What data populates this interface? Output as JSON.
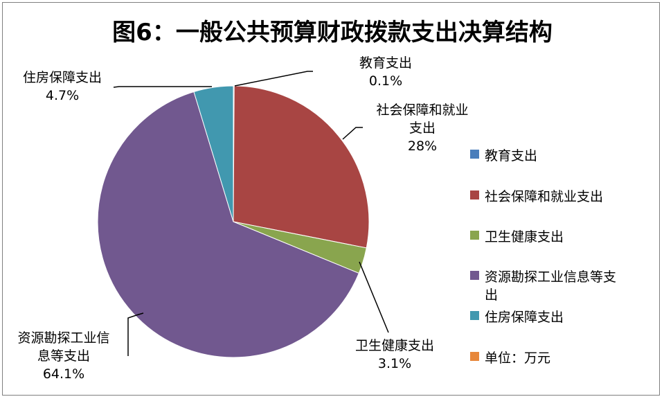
{
  "chart_data": {
    "type": "pie",
    "title": "图6：一般公共预算财政拨款支出决算结构",
    "categories": [
      "教育支出",
      "社会保障和就业支出",
      "卫生健康支出",
      "资源勘探工业信息等支出",
      "住房保障支出"
    ],
    "values": [
      0.1,
      28,
      3.1,
      64.1,
      4.7
    ],
    "colors": [
      "#4a7ebb",
      "#a84543",
      "#89a54e",
      "#71588f",
      "#4198af"
    ],
    "data_labels": [
      {
        "lines": [
          "教育支出",
          "0.1%"
        ]
      },
      {
        "lines": [
          "社会保障和就业",
          "支出",
          "28%"
        ]
      },
      {
        "lines": [
          "卫生健康支出",
          "3.1%"
        ]
      },
      {
        "lines": [
          "资源勘探工业信",
          "息等支出",
          "64.1%"
        ]
      },
      {
        "lines": [
          "住房保障支出",
          "4.7%"
        ]
      }
    ],
    "legend": {
      "position": "right",
      "entries": [
        {
          "label": "教育支出",
          "color": "#4a7ebb"
        },
        {
          "label": "社会保障和就业支出",
          "color": "#a84543"
        },
        {
          "label": "卫生健康支出",
          "color": "#89a54e"
        },
        {
          "label": "资源勘探工业信息等支",
          "label2": "出",
          "color": "#71588f"
        },
        {
          "label": "住房保障支出",
          "color": "#4198af"
        },
        {
          "label": "单位：万元",
          "color": "#e7873a"
        }
      ]
    }
  }
}
